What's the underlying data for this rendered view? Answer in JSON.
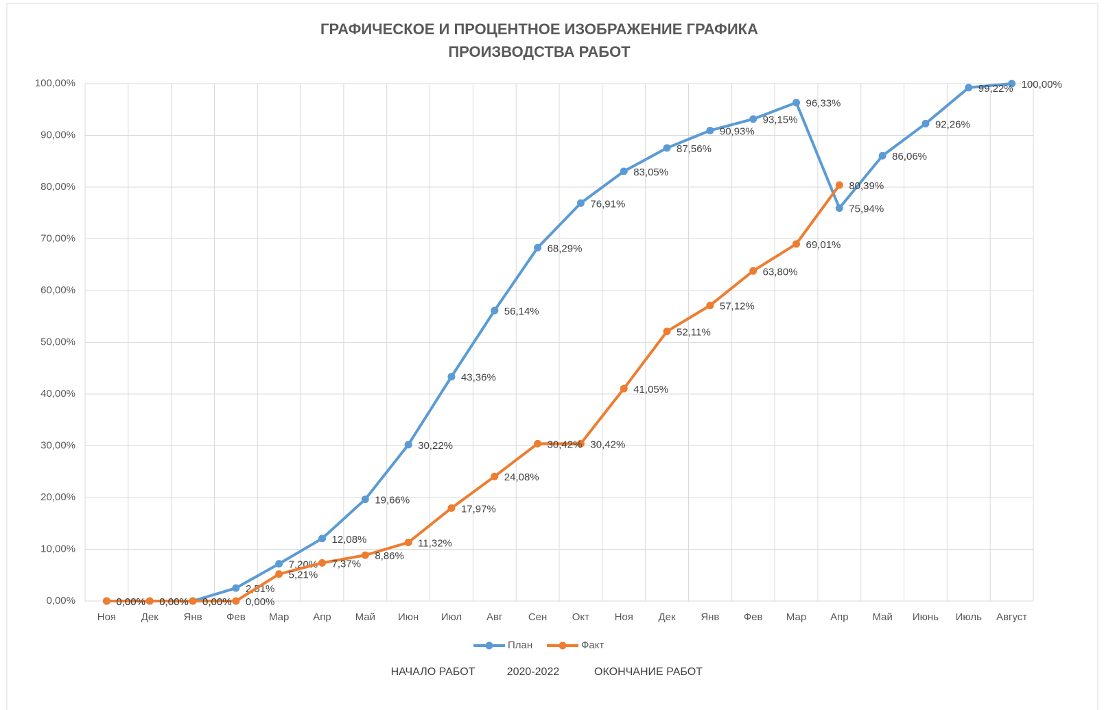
{
  "chart_data": {
    "type": "line",
    "title": [
      "ГРАФИЧЕСКОЕ И ПРОЦЕНТНОЕ ИЗОБРАЖЕНИЕ ГРАФИКА",
      "ПРОИЗВОДСТВА РАБОТ"
    ],
    "xlabel": [
      "НАЧАЛО РАБОТ",
      "2020-2022",
      "ОКОНЧАНИЕ РАБОТ"
    ],
    "categories": [
      "Ноя",
      "Дек",
      "Янв",
      "Фев",
      "Мар",
      "Апр",
      "Май",
      "Июн",
      "Июл",
      "Авг",
      "Сен",
      "Окт",
      "Ноя",
      "Дек",
      "Янв",
      "Фев",
      "Мар",
      "Апр",
      "Май",
      "Июнь",
      "Июль",
      "Август"
    ],
    "series": [
      {
        "name": "План",
        "color": "#5b9bd5",
        "values": [
          0,
          0,
          0,
          2.51,
          7.2,
          12.08,
          19.66,
          30.22,
          43.36,
          56.14,
          68.29,
          76.91,
          83.05,
          87.56,
          90.93,
          93.15,
          96.33,
          75.94,
          86.06,
          92.26,
          99.22,
          100
        ],
        "value_labels": [
          "0,00%",
          "0,00%",
          "0,00%",
          "2,51%",
          "7,20%",
          "12,08%",
          "19,66%",
          "30,22%",
          "43,36%",
          "56,14%",
          "68,29%",
          "76,91%",
          "83,05%",
          "87,56%",
          "90,93%",
          "93,15%",
          "96,33%",
          "75,94%",
          "86,06%",
          "92,26%",
          "99,22%",
          "100,00%"
        ]
      },
      {
        "name": "Факт",
        "color": "#ed7d31",
        "values": [
          0,
          0,
          0,
          0,
          5.21,
          7.37,
          8.86,
          11.32,
          17.97,
          24.08,
          30.42,
          30.42,
          41.05,
          52.11,
          57.12,
          63.8,
          69.01,
          80.39,
          null,
          null,
          null,
          null
        ],
        "value_labels": [
          "0,00%",
          "0,00%",
          "0,00%",
          "0,00%",
          "5,21%",
          "7,37%",
          "8,86%",
          "11,32%",
          "17,97%",
          "24,08%",
          "30,42%",
          "30,42%",
          "41,05%",
          "52,11%",
          "57,12%",
          "63,80%",
          "69,01%",
          "80,39%",
          null,
          null,
          null,
          null
        ]
      }
    ],
    "ylim": [
      0,
      100
    ],
    "yticks": [
      {
        "value": 0,
        "label": "0,00%"
      },
      {
        "value": 10,
        "label": "10,00%"
      },
      {
        "value": 20,
        "label": "20,00%"
      },
      {
        "value": 30,
        "label": "30,00%"
      },
      {
        "value": 40,
        "label": "40,00%"
      },
      {
        "value": 50,
        "label": "50,00%"
      },
      {
        "value": 60,
        "label": "60,00%"
      },
      {
        "value": 70,
        "label": "70,00%"
      },
      {
        "value": 80,
        "label": "80,00%"
      },
      {
        "value": 90,
        "label": "90,00%"
      },
      {
        "value": 100,
        "label": "100,00%"
      }
    ],
    "grid": true,
    "legend": "bottom"
  }
}
